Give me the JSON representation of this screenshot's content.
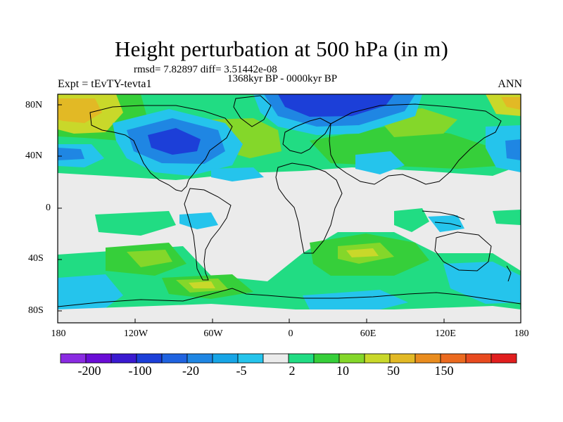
{
  "title": "Height perturbation at 500 hPa (in m)",
  "stats_line": "rmsd= 7.82897 diff= 3.51442e-08",
  "period": "1368kyr BP - 0000kyr BP",
  "experiment": "Expt = tEvTY-tevta1",
  "season": "ANN",
  "y_ticks": [
    "80N",
    "40N",
    "0",
    "40S",
    "80S"
  ],
  "x_ticks": [
    "180",
    "120W",
    "60W",
    "0",
    "60E",
    "120E",
    "180"
  ],
  "colorbar": {
    "colors": [
      "#8a2be2",
      "#6a0dd6",
      "#3a1ad0",
      "#1c3fd8",
      "#1f63e0",
      "#1f86e3",
      "#17a5e6",
      "#25c4ec",
      "#ebebeb",
      "#21dc83",
      "#36cf3a",
      "#84d72a",
      "#c9d82a",
      "#e2b925",
      "#e98c1e",
      "#eb6a1f",
      "#e84a1f",
      "#e11e1e"
    ],
    "labels": [
      "-200",
      "-100",
      "-20",
      "-5",
      "2",
      "10",
      "50",
      "150"
    ]
  },
  "map_colors": {
    "neutral": "#ebebeb",
    "light_blue": "#25c4ec",
    "mid_blue": "#1f86e3",
    "dark_blue": "#1c3fd8",
    "green": "#21dc83",
    "lime": "#36cf3a",
    "yellow_green": "#84d72a",
    "yellow": "#c9d82a",
    "orange": "#e2b925"
  }
}
